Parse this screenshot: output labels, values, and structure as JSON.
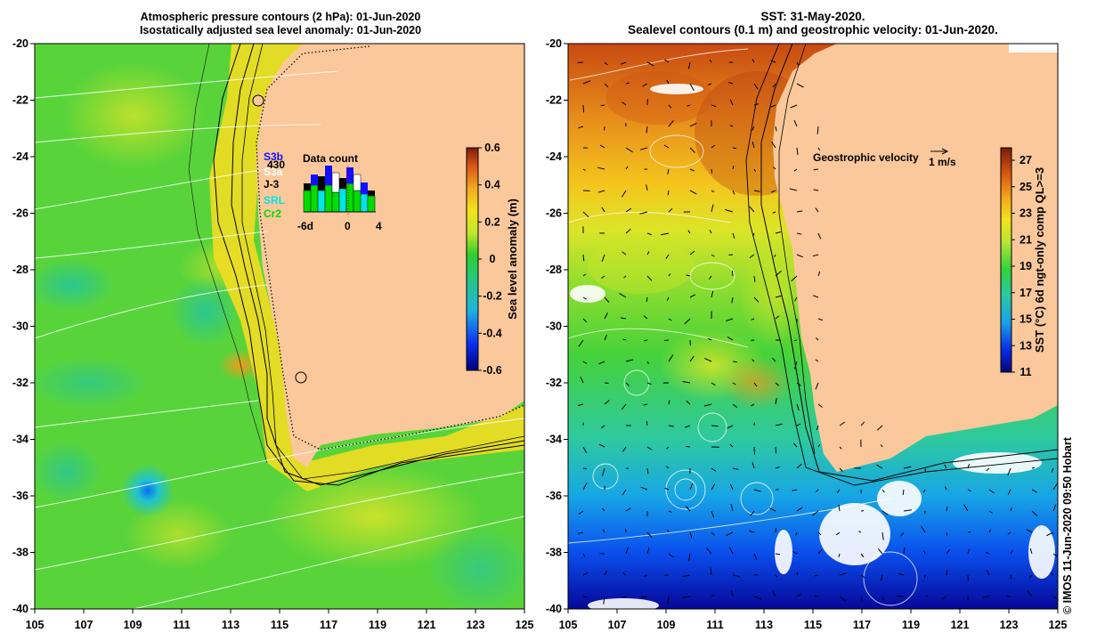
{
  "left_panel": {
    "title_line1": "Atmospheric pressure contours (2 hPa): 01-Jun-2020",
    "title_line2": "Isostatically adjusted sea level anomaly: 01-Jun-2020",
    "colorbar": {
      "label": "Sea level anomaly (m)",
      "ticks": [
        "0.6",
        "0.4",
        "0.2",
        "0",
        "-0.2",
        "-0.4",
        "-0.6"
      ]
    },
    "data_count": {
      "title": "Data count",
      "satellites": [
        {
          "name": "S3b",
          "color": "#1010ff"
        },
        {
          "name": "430",
          "color": "#000000"
        },
        {
          "name": "S3a",
          "color": "#ffffff"
        },
        {
          "name": "J-3",
          "color": "#000000"
        },
        {
          "name": "SRL",
          "color": "#00e5e5"
        },
        {
          "name": "Cr2",
          "color": "#00dd00"
        }
      ],
      "xticks": [
        "-6d",
        "0",
        "4"
      ]
    }
  },
  "right_panel": {
    "title_line1": "SST: 31-May-2020.",
    "title_line2": "Sealevel contours (0.1 m) and geostrophic velocity: 01-Jun-2020.",
    "velocity_legend": "Geostrophic velocity",
    "velocity_scale": "1 m/s",
    "colorbar": {
      "label": "SST (°C) 6d ngt-only comp QL>=3",
      "ticks": [
        "27",
        "25",
        "23",
        "21",
        "19",
        "17",
        "15",
        "13",
        "11"
      ]
    }
  },
  "axes": {
    "x_ticks": [
      "105",
      "107",
      "109",
      "111",
      "113",
      "115",
      "117",
      "119",
      "121",
      "123",
      "125"
    ],
    "y_ticks": [
      "-20",
      "-22",
      "-24",
      "-26",
      "-28",
      "-30",
      "-32",
      "-34",
      "-36",
      "-38",
      "-40"
    ]
  },
  "credit": "© IMOS 11-Jun-2020 09:50 Hobart",
  "chart_data": [
    {
      "type": "heatmap",
      "title": "Atmospheric pressure contours (2 hPa): 01-Jun-2020 / Isostatically adjusted sea level anomaly: 01-Jun-2020",
      "xlim": [
        105,
        125
      ],
      "ylim": [
        -40,
        -20
      ],
      "colorbar_range": [
        -0.6,
        0.6
      ],
      "colorbar_label": "Sea level anomaly (m)"
    },
    {
      "type": "heatmap",
      "title": "SST: 31-May-2020. / Sealevel contours (0.1 m) and geostrophic velocity: 01-Jun-2020.",
      "xlim": [
        105,
        125
      ],
      "ylim": [
        -40,
        -20
      ],
      "colorbar_range": [
        11,
        28
      ],
      "colorbar_label": "SST (°C) 6d ngt-only comp QL>=3"
    }
  ]
}
